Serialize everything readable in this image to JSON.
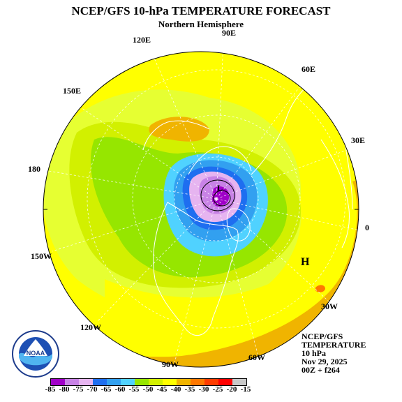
{
  "title": "NCEP/GFS 10-hPa TEMPERATURE FORECAST",
  "subtitle": "Northern Hemisphere",
  "longitudes": {
    "e90": "90E",
    "e120": "120E",
    "e60": "60E",
    "e150": "150E",
    "e30": "30E",
    "d180": "180",
    "zero": "0",
    "w150": "150W",
    "w30": "30W",
    "w120": "120W",
    "w60": "60W",
    "w90": "90W"
  },
  "markers": {
    "high": "H",
    "low": "L"
  },
  "info": {
    "model": "NCEP/GFS",
    "field": "TEMPERATURE",
    "level": "10 hPa",
    "date": "Nov 29, 2025",
    "run": "00Z + f264"
  },
  "logo": {
    "text": "NOAA"
  },
  "colorbar": {
    "levels": [
      "-85",
      "-80",
      "-75",
      "-70",
      "-65",
      "-60",
      "-55",
      "-50",
      "-45",
      "-40",
      "-35",
      "-30",
      "-25",
      "-20",
      "-15"
    ],
    "colors": [
      "#a000c8",
      "#c882e6",
      "#e6b4f0",
      "#1e6ef0",
      "#32a0f0",
      "#50d2ff",
      "#96e600",
      "#d2f000",
      "#ffff00",
      "#f0b400",
      "#ff7800",
      "#ff3c00",
      "#ff0000",
      "#c8c8c8"
    ]
  },
  "colors": {
    "yellow": "#ffff00",
    "lightyellow": "#e6ff32",
    "lightgreen": "#d2f000",
    "green": "#96e600",
    "cyan": "#50d2ff",
    "lightblue": "#32a0f0",
    "blue": "#1e6ef0",
    "lilac": "#e6b4f0",
    "lavender": "#c882e6",
    "purple": "#a000c8",
    "orange": "#f0b400",
    "darkorange": "#ff7800"
  }
}
